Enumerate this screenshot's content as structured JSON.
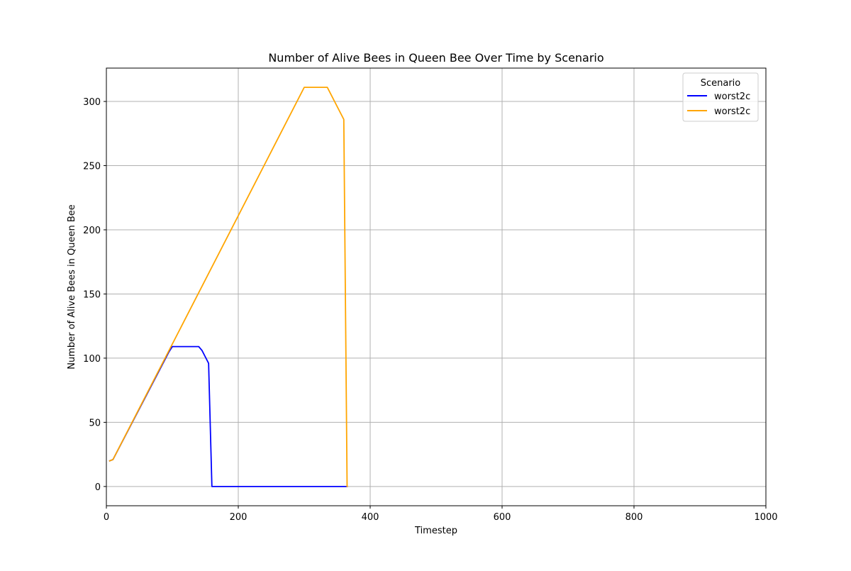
{
  "chart_data": {
    "type": "line",
    "title": "Number of Alive Bees in Queen Bee Over Time by Scenario",
    "xlabel": "Timestep",
    "ylabel": "Number of Alive Bees in Queen Bee",
    "xlim": [
      0,
      1000
    ],
    "ylim": [
      -15,
      326
    ],
    "xticks": [
      0,
      200,
      400,
      600,
      800,
      1000
    ],
    "yticks": [
      0,
      50,
      100,
      150,
      200,
      250,
      300
    ],
    "grid": true,
    "legend": {
      "title": "Scenario",
      "position": "top-right"
    },
    "series": [
      {
        "name": "worst2c",
        "color": "#0000ff",
        "x": [
          5,
          10,
          95,
          100,
          140,
          145,
          150,
          155,
          160,
          365
        ],
        "y": [
          20,
          21,
          105,
          109,
          109,
          106,
          101,
          96,
          0,
          0
        ]
      },
      {
        "name": "worst2c",
        "color": "#ffa500",
        "x": [
          5,
          10,
          300,
          335,
          360,
          365
        ],
        "y": [
          20,
          21,
          311,
          311,
          286,
          0
        ]
      }
    ]
  }
}
